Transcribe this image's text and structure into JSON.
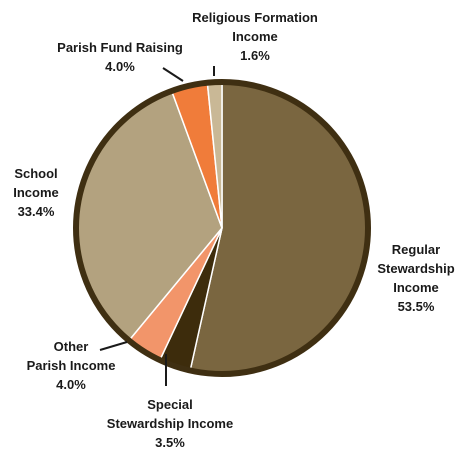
{
  "chart_data": {
    "type": "pie",
    "title": "",
    "rim_color": "#3f2f12",
    "slices": [
      {
        "name": "Regular Stewardship Income",
        "label_lines": [
          "Regular",
          "Stewardship",
          "Income"
        ],
        "pct_label": "53.5%",
        "value": 53.5,
        "color": "#7a6640"
      },
      {
        "name": "Special Stewardship Income",
        "label_lines": [
          "Special",
          "Stewardship Income"
        ],
        "pct_label": "3.5%",
        "value": 3.5,
        "color": "#3d2c0c"
      },
      {
        "name": "Other Parish Income",
        "label_lines": [
          "Other",
          "Parish Income"
        ],
        "pct_label": "4.0%",
        "value": 4.0,
        "color": "#f2956a"
      },
      {
        "name": "School Income",
        "label_lines": [
          "School",
          "Income"
        ],
        "pct_label": "33.4%",
        "value": 33.4,
        "color": "#b3a27f"
      },
      {
        "name": "Parish Fund Raising",
        "label_lines": [
          "Parish Fund Raising"
        ],
        "pct_label": "4.0%",
        "value": 4.0,
        "color": "#f07c3a"
      },
      {
        "name": "Religious Formation Income",
        "label_lines": [
          "Religious Formation",
          "Income"
        ],
        "pct_label": "1.6%",
        "value": 1.6,
        "color": "#c9b896"
      }
    ]
  }
}
